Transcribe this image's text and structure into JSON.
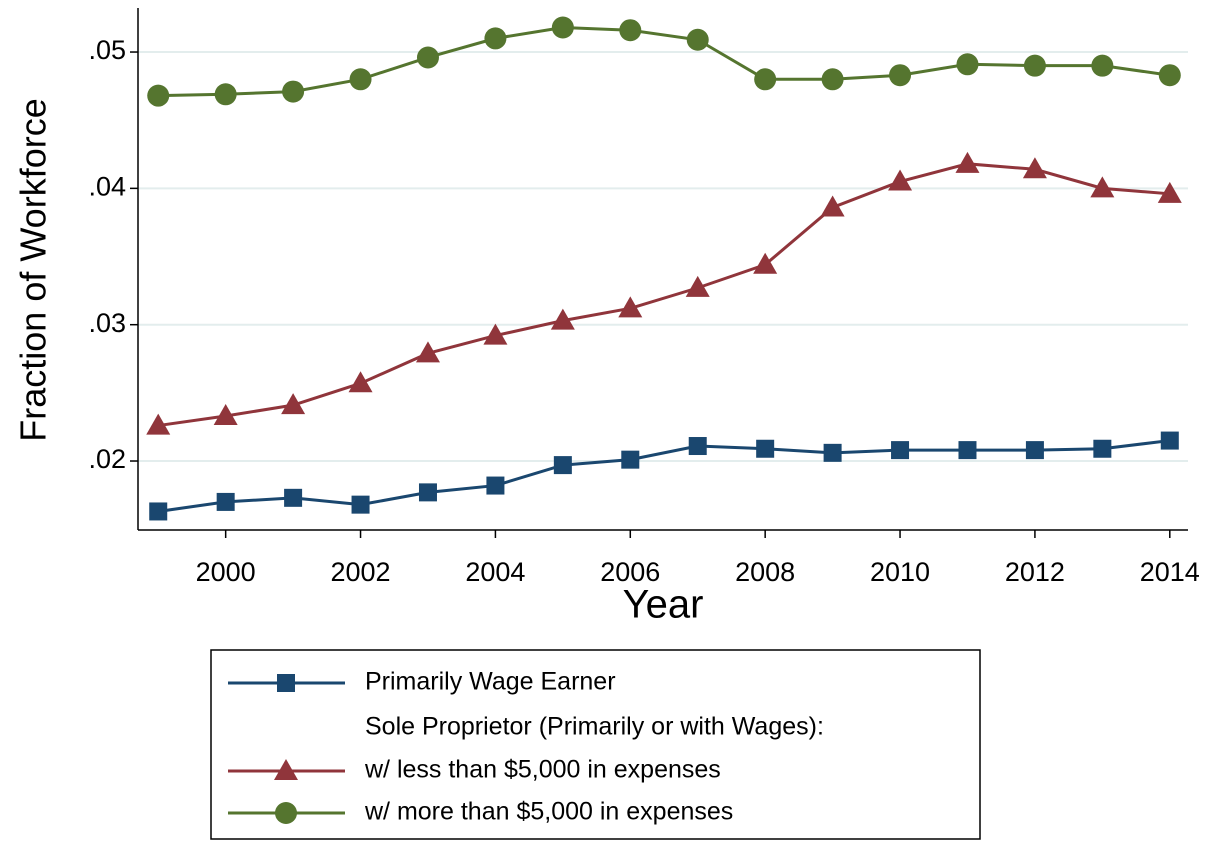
{
  "chart_data": {
    "type": "line",
    "x_label": "Year",
    "y_label": "Fraction of Workforce",
    "x": [
      1999,
      2000,
      2001,
      2002,
      2003,
      2004,
      2005,
      2006,
      2007,
      2008,
      2009,
      2010,
      2011,
      2012,
      2013,
      2014
    ],
    "xlim": [
      1998.7,
      2014.27
    ],
    "xticks": [
      2000,
      2002,
      2004,
      2006,
      2008,
      2010,
      2012,
      2014
    ],
    "ylim": [
      0.01494,
      0.05323
    ],
    "yticks": [
      {
        "value": 0.02,
        "label": ".02"
      },
      {
        "value": 0.03,
        "label": ".03"
      },
      {
        "value": 0.04,
        "label": ".04"
      },
      {
        "value": 0.05,
        "label": ".05"
      }
    ],
    "grid": true,
    "legend_note": "Sole Proprietor (Primarily or with Wages):",
    "series": [
      {
        "name": "Primarily Wage Earner",
        "color": "#1a476f",
        "marker": "square",
        "values": [
          0.0163,
          0.017,
          0.0173,
          0.0168,
          0.0177,
          0.0182,
          0.0197,
          0.0201,
          0.0211,
          0.0209,
          0.0206,
          0.0208,
          0.0208,
          0.0208,
          0.0209,
          0.0215
        ]
      },
      {
        "name": "w/ less than $5,000 in expenses",
        "color": "#90353b",
        "marker": "triangle",
        "values": [
          0.0226,
          0.0233,
          0.0241,
          0.0257,
          0.0279,
          0.0292,
          0.0303,
          0.0312,
          0.0327,
          0.0344,
          0.0386,
          0.0405,
          0.0418,
          0.0414,
          0.04,
          0.0396
        ]
      },
      {
        "name": "w/ more than $5,000 in expenses",
        "color": "#55752f",
        "marker": "circle",
        "values": [
          0.0468,
          0.0469,
          0.0471,
          0.048,
          0.0496,
          0.051,
          0.0518,
          0.0516,
          0.0509,
          0.048,
          0.048,
          0.0483,
          0.0491,
          0.049,
          0.049,
          0.0483
        ]
      }
    ]
  }
}
